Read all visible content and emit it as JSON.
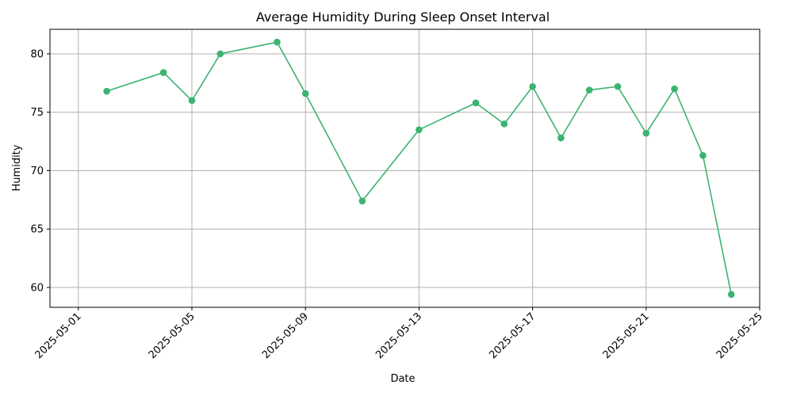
{
  "chart_data": {
    "type": "line",
    "title": "Average Humidity During Sleep Onset Interval",
    "xlabel": "Date",
    "ylabel": "Humidity",
    "xlim": [
      "2025-04-30",
      "2025-05-25"
    ],
    "ylim": [
      58.3,
      82.1
    ],
    "x_ticks": [
      "2025-05-01",
      "2025-05-05",
      "2025-05-09",
      "2025-05-13",
      "2025-05-17",
      "2025-05-21",
      "2025-05-25"
    ],
    "y_ticks": [
      60,
      65,
      70,
      75,
      80
    ],
    "grid": true,
    "series": [
      {
        "color": "#3cb371",
        "marker": "circle",
        "points": [
          {
            "x": "2025-05-02",
            "y": 76.8
          },
          {
            "x": "2025-05-04",
            "y": 78.4
          },
          {
            "x": "2025-05-05",
            "y": 76.0
          },
          {
            "x": "2025-05-06",
            "y": 80.0
          },
          {
            "x": "2025-05-08",
            "y": 81.0
          },
          {
            "x": "2025-05-09",
            "y": 76.6
          },
          {
            "x": "2025-05-11",
            "y": 67.4
          },
          {
            "x": "2025-05-13",
            "y": 73.5
          },
          {
            "x": "2025-05-15",
            "y": 75.8
          },
          {
            "x": "2025-05-16",
            "y": 74.0
          },
          {
            "x": "2025-05-17",
            "y": 77.2
          },
          {
            "x": "2025-05-18",
            "y": 72.8
          },
          {
            "x": "2025-05-19",
            "y": 76.9
          },
          {
            "x": "2025-05-20",
            "y": 77.2
          },
          {
            "x": "2025-05-21",
            "y": 73.2
          },
          {
            "x": "2025-05-22",
            "y": 77.0
          },
          {
            "x": "2025-05-23",
            "y": 71.3
          },
          {
            "x": "2025-05-24",
            "y": 59.4
          }
        ]
      }
    ]
  }
}
